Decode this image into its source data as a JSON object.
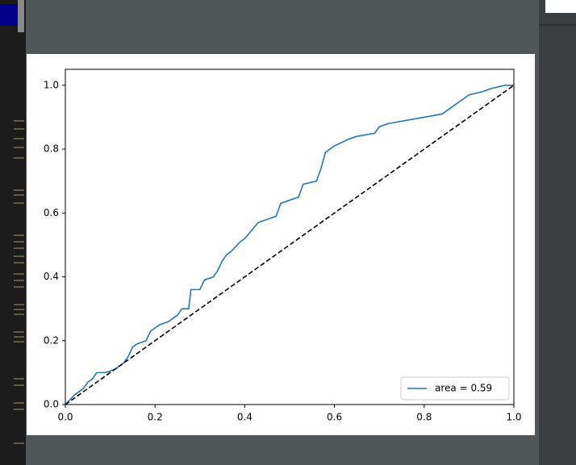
{
  "chart_data": {
    "type": "line",
    "series": [
      {
        "name": "area = 0.59",
        "color": "#1f77b4",
        "x": [
          0,
          0.02,
          0.04,
          0.05,
          0.06,
          0.07,
          0.09,
          0.11,
          0.12,
          0.13,
          0.14,
          0.15,
          0.16,
          0.18,
          0.19,
          0.21,
          0.23,
          0.25,
          0.26,
          0.275,
          0.28,
          0.3,
          0.31,
          0.33,
          0.34,
          0.35,
          0.36,
          0.37,
          0.39,
          0.4,
          0.43,
          0.47,
          0.48,
          0.5,
          0.52,
          0.53,
          0.56,
          0.57,
          0.58,
          0.6,
          0.63,
          0.65,
          0.69,
          0.7,
          0.72,
          0.76,
          0.8,
          0.84,
          0.86,
          0.88,
          0.9,
          0.93,
          0.95,
          0.98,
          1
        ],
        "values": [
          0,
          0.03,
          0.05,
          0.07,
          0.08,
          0.1,
          0.1,
          0.11,
          0.12,
          0.13,
          0.15,
          0.18,
          0.19,
          0.2,
          0.23,
          0.25,
          0.26,
          0.28,
          0.3,
          0.3,
          0.36,
          0.36,
          0.39,
          0.4,
          0.42,
          0.45,
          0.47,
          0.48,
          0.51,
          0.52,
          0.57,
          0.59,
          0.63,
          0.64,
          0.65,
          0.69,
          0.7,
          0.74,
          0.79,
          0.81,
          0.83,
          0.84,
          0.85,
          0.87,
          0.88,
          0.89,
          0.9,
          0.91,
          0.93,
          0.95,
          0.97,
          0.98,
          0.99,
          1.0,
          1.0
        ]
      },
      {
        "color": "#000000",
        "linestyle": "dashed",
        "x": [
          0,
          1
        ],
        "values": [
          0,
          1
        ]
      }
    ],
    "xlim": [
      0,
      1
    ],
    "ylim": [
      0,
      1.05
    ],
    "xticks": [
      {
        "value": 0,
        "label": "0.0"
      },
      {
        "value": 0.2,
        "label": "0.2"
      },
      {
        "value": 0.4,
        "label": "0.4"
      },
      {
        "value": 0.6,
        "label": "0.6"
      },
      {
        "value": 0.8,
        "label": "0.8"
      },
      {
        "value": 1,
        "label": "1.0"
      }
    ],
    "yticks": [
      {
        "value": 0,
        "label": "0.0"
      },
      {
        "value": 0.2,
        "label": "0.2"
      },
      {
        "value": 0.4,
        "label": "0.4"
      },
      {
        "value": 0.6,
        "label": "0.6"
      },
      {
        "value": 0.8,
        "label": "0.8"
      },
      {
        "value": 1,
        "label": "1.0"
      }
    ],
    "legend": "lower right",
    "grid": false
  }
}
